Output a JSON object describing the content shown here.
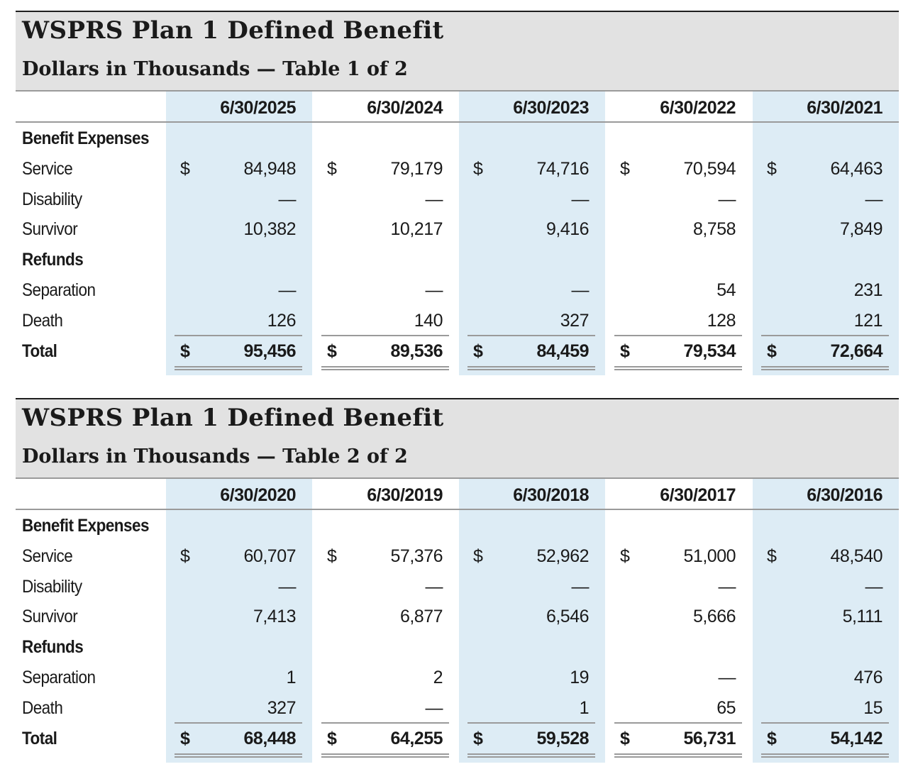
{
  "tables": [
    {
      "title": "WSPRS Plan 1 Defined Benefit",
      "subtitle": "Dollars in Thousands — Table 1 of 2",
      "columns": [
        "6/30/2025",
        "6/30/2024",
        "6/30/2023",
        "6/30/2022",
        "6/30/2021"
      ],
      "rows": [
        {
          "label": "Benefit Expenses",
          "bold": true,
          "currency": false,
          "values": [
            "",
            "",
            "",
            "",
            ""
          ]
        },
        {
          "label": "Service",
          "bold": false,
          "currency": true,
          "values": [
            "84,948",
            "79,179",
            "74,716",
            "70,594",
            "64,463"
          ]
        },
        {
          "label": "Disability",
          "bold": false,
          "currency": false,
          "values": [
            "—",
            "—",
            "—",
            "—",
            "—"
          ]
        },
        {
          "label": "Survivor",
          "bold": false,
          "currency": false,
          "values": [
            "10,382",
            "10,217",
            "9,416",
            "8,758",
            "7,849"
          ]
        },
        {
          "label": "Refunds",
          "bold": true,
          "currency": false,
          "values": [
            "",
            "",
            "",
            "",
            ""
          ]
        },
        {
          "label": "Separation",
          "bold": false,
          "currency": false,
          "values": [
            "—",
            "—",
            "—",
            "54",
            "231"
          ]
        },
        {
          "label": "Death",
          "bold": false,
          "currency": false,
          "values": [
            "126",
            "140",
            "327",
            "128",
            "121"
          ]
        },
        {
          "label": "Total",
          "bold": true,
          "currency": true,
          "total": true,
          "values": [
            "95,456",
            "89,536",
            "84,459",
            "79,534",
            "72,664"
          ]
        }
      ]
    },
    {
      "title": "WSPRS Plan 1 Defined Benefit",
      "subtitle": "Dollars in Thousands — Table 2 of 2",
      "columns": [
        "6/30/2020",
        "6/30/2019",
        "6/30/2018",
        "6/30/2017",
        "6/30/2016"
      ],
      "rows": [
        {
          "label": "Benefit Expenses",
          "bold": true,
          "currency": false,
          "values": [
            "",
            "",
            "",
            "",
            ""
          ]
        },
        {
          "label": "Service",
          "bold": false,
          "currency": true,
          "values": [
            "60,707",
            "57,376",
            "52,962",
            "51,000",
            "48,540"
          ]
        },
        {
          "label": "Disability",
          "bold": false,
          "currency": false,
          "values": [
            "—",
            "—",
            "—",
            "—",
            "—"
          ]
        },
        {
          "label": "Survivor",
          "bold": false,
          "currency": false,
          "values": [
            "7,413",
            "6,877",
            "6,546",
            "5,666",
            "5,111"
          ]
        },
        {
          "label": "Refunds",
          "bold": true,
          "currency": false,
          "values": [
            "",
            "",
            "",
            "",
            ""
          ]
        },
        {
          "label": "Separation",
          "bold": false,
          "currency": false,
          "values": [
            "1",
            "2",
            "19",
            "—",
            "476"
          ]
        },
        {
          "label": "Death",
          "bold": false,
          "currency": false,
          "values": [
            "327",
            "—",
            "1",
            "65",
            "15"
          ]
        },
        {
          "label": "Total",
          "bold": true,
          "currency": true,
          "total": true,
          "values": [
            "68,448",
            "64,255",
            "59,528",
            "56,731",
            "54,142"
          ]
        }
      ]
    }
  ],
  "currency_symbol": "$",
  "colors": {
    "title_band": "#e2e2e2",
    "column_shade": "#ddecf5",
    "rule": "#9a9a9a"
  }
}
